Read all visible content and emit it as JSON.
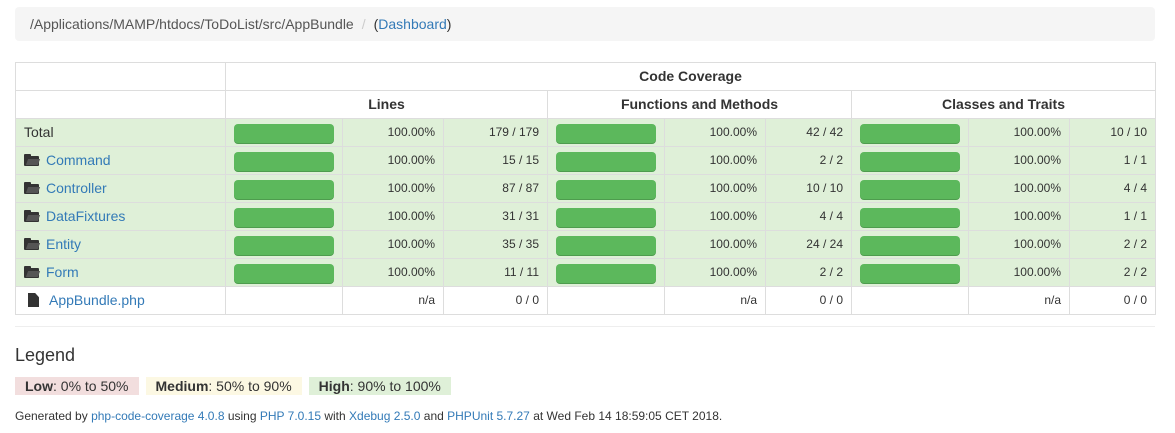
{
  "breadcrumb": {
    "path": "/Applications/MAMP/htdocs/ToDoList/src/AppBundle",
    "separator": "/",
    "link_open": "(",
    "link": "Dashboard",
    "link_close": ")"
  },
  "table": {
    "title": "Code Coverage",
    "groups": [
      "Lines",
      "Functions and Methods",
      "Classes and Traits"
    ],
    "rows": [
      {
        "name": "Total",
        "type": "total",
        "lines_pct": "100.00%",
        "lines": "179 / 179",
        "funcs_pct": "100.00%",
        "funcs": "42 / 42",
        "classes_pct": "100.00%",
        "classes": "10 / 10",
        "coverage": 1.0
      },
      {
        "name": "Command",
        "type": "folder",
        "lines_pct": "100.00%",
        "lines": "15 / 15",
        "funcs_pct": "100.00%",
        "funcs": "2 / 2",
        "classes_pct": "100.00%",
        "classes": "1 / 1",
        "coverage": 1.0
      },
      {
        "name": "Controller",
        "type": "folder",
        "lines_pct": "100.00%",
        "lines": "87 / 87",
        "funcs_pct": "100.00%",
        "funcs": "10 / 10",
        "classes_pct": "100.00%",
        "classes": "4 / 4",
        "coverage": 1.0
      },
      {
        "name": "DataFixtures",
        "type": "folder",
        "lines_pct": "100.00%",
        "lines": "31 / 31",
        "funcs_pct": "100.00%",
        "funcs": "4 / 4",
        "classes_pct": "100.00%",
        "classes": "1 / 1",
        "coverage": 1.0
      },
      {
        "name": "Entity",
        "type": "folder",
        "lines_pct": "100.00%",
        "lines": "35 / 35",
        "funcs_pct": "100.00%",
        "funcs": "24 / 24",
        "classes_pct": "100.00%",
        "classes": "2 / 2",
        "coverage": 1.0
      },
      {
        "name": "Form",
        "type": "folder",
        "lines_pct": "100.00%",
        "lines": "11 / 11",
        "funcs_pct": "100.00%",
        "funcs": "2 / 2",
        "classes_pct": "100.00%",
        "classes": "2 / 2",
        "coverage": 1.0
      },
      {
        "name": "AppBundle.php",
        "type": "file",
        "lines_pct": "n/a",
        "lines": "0 / 0",
        "funcs_pct": "n/a",
        "funcs": "0 / 0",
        "classes_pct": "n/a",
        "classes": "0 / 0",
        "coverage": null
      }
    ]
  },
  "legend": {
    "title": "Legend",
    "low_label": "Low",
    "low_range": ": 0% to 50%",
    "medium_label": "Medium",
    "medium_range": ": 50% to 90%",
    "high_label": "High",
    "high_range": ": 90% to 100%"
  },
  "footer": {
    "prefix": "Generated by ",
    "tool": "php-code-coverage 4.0.8",
    "using": " using ",
    "php": "PHP 7.0.15",
    "with": " with ",
    "xdebug": "Xdebug 2.5.0",
    "and": " and ",
    "phpunit": "PHPUnit 5.7.27",
    "at": " at Wed Feb 14 18:59:05 CET 2018."
  },
  "colors": {
    "bar_success": "#5cb85c",
    "row_success": "#dff0d8",
    "link": "#337ab7",
    "low": "#f2dede",
    "medium": "#fcf8e3",
    "high": "#dff0d8"
  }
}
